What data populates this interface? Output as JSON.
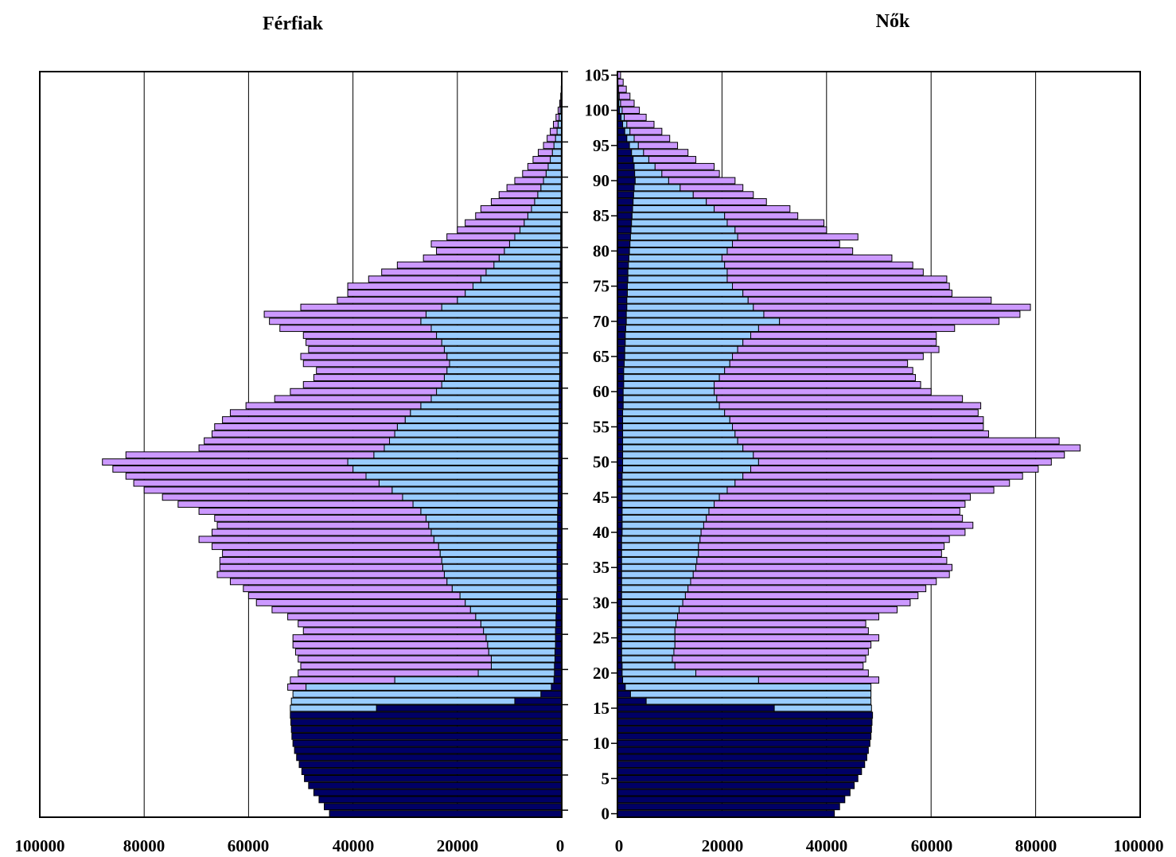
{
  "chart_data": {
    "type": "bar",
    "description_type": "population pyramid (stacked horizontal bars)",
    "panels": [
      {
        "name": "Férfiak",
        "side": "left",
        "xlim": [
          0,
          100000
        ],
        "xticks": [
          100000,
          80000,
          60000,
          40000,
          20000,
          0
        ]
      },
      {
        "name": "Nők",
        "side": "right",
        "xlim": [
          0,
          100000
        ],
        "xticks": [
          0,
          20000,
          40000,
          60000,
          80000,
          100000
        ]
      }
    ],
    "ylim": [
      0,
      105
    ],
    "yticks": [
      0,
      5,
      10,
      15,
      20,
      25,
      30,
      35,
      40,
      45,
      50,
      55,
      60,
      65,
      70,
      75,
      80,
      85,
      90,
      95,
      100,
      105
    ],
    "grid": "vertical",
    "colors": {
      "segment1": "#000066",
      "segment2": "#99ccff",
      "segment3": "#cc99ff",
      "edge": "#000000"
    },
    "series_note": "Each age bar is stacked: dark navy segment (innermost), light blue segment, lavender segment (outermost). Values are cumulative totals at each boundary.",
    "ages": [
      0,
      1,
      2,
      3,
      4,
      5,
      6,
      7,
      8,
      9,
      10,
      11,
      12,
      13,
      14,
      15,
      16,
      17,
      18,
      19,
      20,
      21,
      22,
      23,
      24,
      25,
      26,
      27,
      28,
      29,
      30,
      31,
      32,
      33,
      34,
      35,
      36,
      37,
      38,
      39,
      40,
      41,
      42,
      43,
      44,
      45,
      46,
      47,
      48,
      49,
      50,
      51,
      52,
      53,
      54,
      55,
      56,
      57,
      58,
      59,
      60,
      61,
      62,
      63,
      64,
      65,
      66,
      67,
      68,
      69,
      70,
      71,
      72,
      73,
      74,
      75,
      76,
      77,
      78,
      79,
      80,
      81,
      82,
      83,
      84,
      85,
      86,
      87,
      88,
      89,
      90,
      91,
      92,
      93,
      94,
      95,
      96,
      97,
      98,
      99,
      100,
      101,
      102,
      103,
      104,
      105
    ],
    "male": {
      "s1_end": [
        44500,
        45500,
        46500,
        47500,
        48500,
        49300,
        49800,
        50300,
        50800,
        51200,
        51500,
        51700,
        51800,
        51900,
        52000,
        35500,
        9000,
        4000,
        2000,
        1500,
        1400,
        1400,
        1300,
        1300,
        1200,
        1200,
        1200,
        1100,
        1100,
        1000,
        1000,
        1000,
        900,
        900,
        900,
        900,
        900,
        900,
        900,
        800,
        800,
        800,
        800,
        800,
        700,
        700,
        700,
        700,
        700,
        700,
        600,
        600,
        600,
        600,
        600,
        500,
        500,
        500,
        500,
        500,
        500,
        500,
        400,
        400,
        400,
        400,
        400,
        400,
        400,
        400,
        400,
        300,
        300,
        300,
        300,
        300,
        300,
        300,
        300,
        200,
        200,
        200,
        200,
        200,
        200,
        200,
        100,
        100,
        100,
        100,
        100,
        100,
        100,
        100,
        100,
        0,
        0,
        0,
        0,
        0,
        0,
        0,
        0,
        0,
        0,
        0
      ],
      "s2_end": [
        44500,
        45500,
        46500,
        47500,
        48500,
        49300,
        49800,
        50300,
        50800,
        51200,
        51500,
        51700,
        51800,
        51900,
        52000,
        52000,
        51800,
        51500,
        49000,
        32000,
        16000,
        13500,
        13500,
        14000,
        14200,
        14500,
        15000,
        15500,
        16500,
        17500,
        18500,
        19500,
        21000,
        22000,
        22500,
        22800,
        23000,
        23300,
        23600,
        24500,
        25000,
        25500,
        26000,
        27000,
        28500,
        30500,
        32500,
        35000,
        37500,
        40000,
        41000,
        36000,
        34000,
        33000,
        32000,
        31500,
        30000,
        29000,
        27000,
        25000,
        24000,
        23000,
        22500,
        22000,
        21500,
        22000,
        22500,
        23000,
        24000,
        25000,
        27000,
        26000,
        23000,
        20000,
        18500,
        17000,
        15500,
        14500,
        13000,
        12000,
        11000,
        10000,
        9000,
        8000,
        7200,
        6500,
        5800,
        5200,
        4600,
        4000,
        3500,
        3000,
        2600,
        2200,
        1800,
        1500,
        1200,
        900,
        700,
        500,
        300,
        200,
        100,
        80,
        50,
        20
      ],
      "s3_end": [
        44500,
        45500,
        46500,
        47500,
        48500,
        49300,
        49800,
        50300,
        50800,
        51200,
        51500,
        51700,
        51800,
        51900,
        52000,
        52000,
        51800,
        51500,
        52500,
        52000,
        50500,
        50000,
        50500,
        51000,
        51500,
        51500,
        49500,
        50500,
        52500,
        55500,
        58500,
        60000,
        61000,
        63500,
        66000,
        65500,
        65500,
        65000,
        67000,
        69500,
        67000,
        66000,
        66500,
        69500,
        73500,
        76500,
        80000,
        82000,
        83500,
        86000,
        88000,
        83500,
        69500,
        68500,
        67000,
        66500,
        65000,
        63500,
        60500,
        55000,
        52000,
        49500,
        47500,
        47000,
        49500,
        50000,
        48500,
        49000,
        49500,
        54000,
        56000,
        57000,
        50000,
        43000,
        41000,
        41000,
        37000,
        34500,
        31500,
        26500,
        24000,
        25000,
        22000,
        20000,
        18500,
        16500,
        15500,
        13500,
        12000,
        10500,
        9000,
        7500,
        6500,
        5500,
        4500,
        3500,
        2800,
        2200,
        1600,
        1100,
        700,
        400,
        200,
        100,
        60,
        30
      ]
    },
    "female": {
      "s1_end": [
        41500,
        42500,
        43500,
        44500,
        45300,
        46000,
        46700,
        47300,
        47700,
        48000,
        48300,
        48500,
        48600,
        48700,
        48800,
        30000,
        5500,
        2500,
        1500,
        1000,
        900,
        900,
        800,
        800,
        800,
        800,
        800,
        800,
        800,
        800,
        800,
        800,
        800,
        800,
        800,
        800,
        800,
        800,
        800,
        800,
        900,
        900,
        900,
        900,
        900,
        900,
        900,
        900,
        900,
        1000,
        1000,
        1000,
        1000,
        1000,
        1000,
        1000,
        1000,
        1000,
        1100,
        1100,
        1100,
        1200,
        1200,
        1200,
        1300,
        1400,
        1400,
        1500,
        1500,
        1600,
        1700,
        1700,
        1800,
        1800,
        1900,
        1900,
        2000,
        2000,
        2100,
        2200,
        2300,
        2400,
        2500,
        2600,
        2700,
        2800,
        2900,
        3000,
        3100,
        3200,
        3400,
        3300,
        3200,
        3000,
        2700,
        2300,
        1800,
        1400,
        1000,
        700,
        400,
        250,
        150,
        80,
        40,
        20
      ],
      "s2_end": [
        41500,
        42500,
        43500,
        44500,
        45300,
        46000,
        46700,
        47300,
        47700,
        48000,
        48300,
        48500,
        48600,
        48700,
        48800,
        48600,
        48500,
        48500,
        48500,
        27000,
        15000,
        11000,
        10500,
        10800,
        11000,
        11000,
        11000,
        11200,
        11500,
        11800,
        12500,
        13000,
        13500,
        14000,
        14500,
        15000,
        15200,
        15500,
        15500,
        15800,
        16000,
        16500,
        17000,
        17500,
        18500,
        19500,
        21000,
        22500,
        24000,
        25500,
        27000,
        26000,
        24000,
        23000,
        22500,
        22000,
        21500,
        20500,
        19500,
        19000,
        18500,
        18500,
        19500,
        20500,
        21500,
        22000,
        23000,
        24000,
        25500,
        27000,
        31000,
        28000,
        26000,
        25000,
        24000,
        22000,
        21000,
        21000,
        20500,
        20000,
        21000,
        22000,
        23000,
        22500,
        21000,
        20500,
        18500,
        17000,
        14500,
        12000,
        9800,
        8500,
        7200,
        6000,
        5000,
        4000,
        3200,
        2400,
        1800,
        1300,
        900,
        600,
        350,
        200,
        100,
        50
      ],
      "s3_end": [
        41500,
        42500,
        43500,
        44500,
        45300,
        46000,
        46700,
        47300,
        47700,
        48000,
        48300,
        48500,
        48600,
        48700,
        48800,
        48600,
        48500,
        48500,
        48500,
        50000,
        48000,
        47000,
        47500,
        48000,
        48500,
        50000,
        48000,
        47500,
        50000,
        53500,
        56000,
        57500,
        59000,
        61000,
        63500,
        64000,
        63000,
        62000,
        62500,
        63500,
        66500,
        68000,
        66000,
        65500,
        66500,
        67500,
        72000,
        75000,
        77500,
        80500,
        83000,
        85500,
        88500,
        84500,
        71000,
        70000,
        70000,
        69000,
        69500,
        66000,
        60000,
        58000,
        57000,
        56500,
        55500,
        58500,
        61500,
        61000,
        61000,
        64500,
        73000,
        77000,
        79000,
        71500,
        64000,
        63500,
        63000,
        58500,
        56500,
        52500,
        45000,
        42500,
        46000,
        40000,
        39500,
        34500,
        33000,
        28500,
        26000,
        24000,
        22500,
        19500,
        18500,
        15000,
        13500,
        11500,
        10000,
        8500,
        7000,
        5500,
        4200,
        3200,
        2400,
        1700,
        1100,
        600
      ]
    }
  },
  "ui": {
    "male_title": "Férfiak",
    "female_title": "Nők",
    "yticks": [
      "0",
      "5",
      "10",
      "15",
      "20",
      "25",
      "30",
      "35",
      "40",
      "45",
      "50",
      "55",
      "60",
      "65",
      "70",
      "75",
      "80",
      "85",
      "90",
      "95",
      "100",
      "105"
    ],
    "male_xticks": [
      "100000",
      "80000",
      "60000",
      "40000",
      "20000",
      "0"
    ],
    "female_xticks": [
      "0",
      "20000",
      "40000",
      "60000",
      "80000",
      "100000"
    ]
  }
}
